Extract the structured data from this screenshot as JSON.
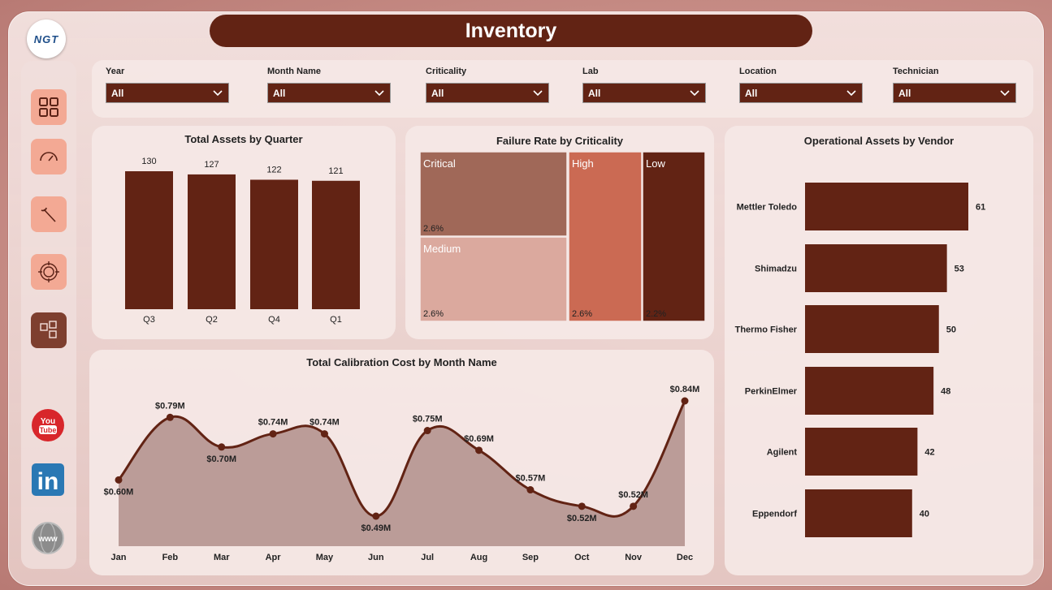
{
  "header": {
    "title": "Inventory",
    "logo_text": "NGT"
  },
  "sidebar": {
    "items": [
      {
        "name": "overview",
        "icon": "grid-icon"
      },
      {
        "name": "performance",
        "icon": "gauge-icon"
      },
      {
        "name": "maintenance",
        "icon": "wrench-icon"
      },
      {
        "name": "calibration",
        "icon": "target-icon"
      },
      {
        "name": "inventory",
        "icon": "blocks-icon",
        "active": true
      }
    ],
    "social": [
      "youtube-icon",
      "linkedin-icon",
      "web-icon"
    ],
    "youtube_text": "You Tube",
    "linkedin_text": "in",
    "web_text": "www"
  },
  "filters": [
    {
      "label": "Year",
      "value": "All"
    },
    {
      "label": "Month Name",
      "value": "All"
    },
    {
      "label": "Criticality",
      "value": "All"
    },
    {
      "label": "Lab",
      "value": "All"
    },
    {
      "label": "Location",
      "value": "All"
    },
    {
      "label": "Technician",
      "value": "All"
    }
  ],
  "colors": {
    "primary": "#622314",
    "accent": "#f3a994",
    "area": "#b5948f"
  },
  "chart_data": [
    {
      "id": "assets_by_quarter",
      "type": "bar",
      "title": "Total Assets by Quarter",
      "categories": [
        "Q3",
        "Q2",
        "Q4",
        "Q1"
      ],
      "values": [
        130,
        127,
        122,
        121
      ]
    },
    {
      "id": "failure_rate",
      "type": "treemap",
      "title": "Failure Rate by Criticality",
      "items": [
        {
          "name": "Critical",
          "value": 2.6,
          "label": "2.6%",
          "color": "#a06858"
        },
        {
          "name": "Medium",
          "value": 2.6,
          "label": "2.6%",
          "color": "#dba99e"
        },
        {
          "name": "High",
          "value": 2.6,
          "label": "2.6%",
          "color": "#cb6a53"
        },
        {
          "name": "Low",
          "value": 2.2,
          "label": "2.2%",
          "color": "#622314"
        }
      ]
    },
    {
      "id": "calibration_cost",
      "type": "area",
      "title": "Total Calibration Cost by Month Name",
      "categories": [
        "Jan",
        "Feb",
        "Mar",
        "Apr",
        "May",
        "Jun",
        "Jul",
        "Aug",
        "Sep",
        "Oct",
        "Nov",
        "Dec"
      ],
      "values": [
        0.6,
        0.79,
        0.7,
        0.74,
        0.74,
        0.49,
        0.75,
        0.69,
        0.57,
        0.52,
        0.52,
        0.84
      ],
      "labels": [
        "$0.60M",
        "$0.79M",
        "$0.70M",
        "$0.74M",
        "$0.74M",
        "$0.49M",
        "$0.75M",
        "$0.69M",
        "$0.57M",
        "$0.52M",
        "$0.52M",
        "$0.84M"
      ]
    },
    {
      "id": "assets_by_vendor",
      "type": "bar",
      "orientation": "horizontal",
      "title": "Operational Assets by Vendor",
      "categories": [
        "Mettler Toledo",
        "Shimadzu",
        "Thermo Fisher",
        "PerkinElmer",
        "Agilent",
        "Eppendorf"
      ],
      "values": [
        61,
        53,
        50,
        48,
        42,
        40
      ]
    }
  ]
}
